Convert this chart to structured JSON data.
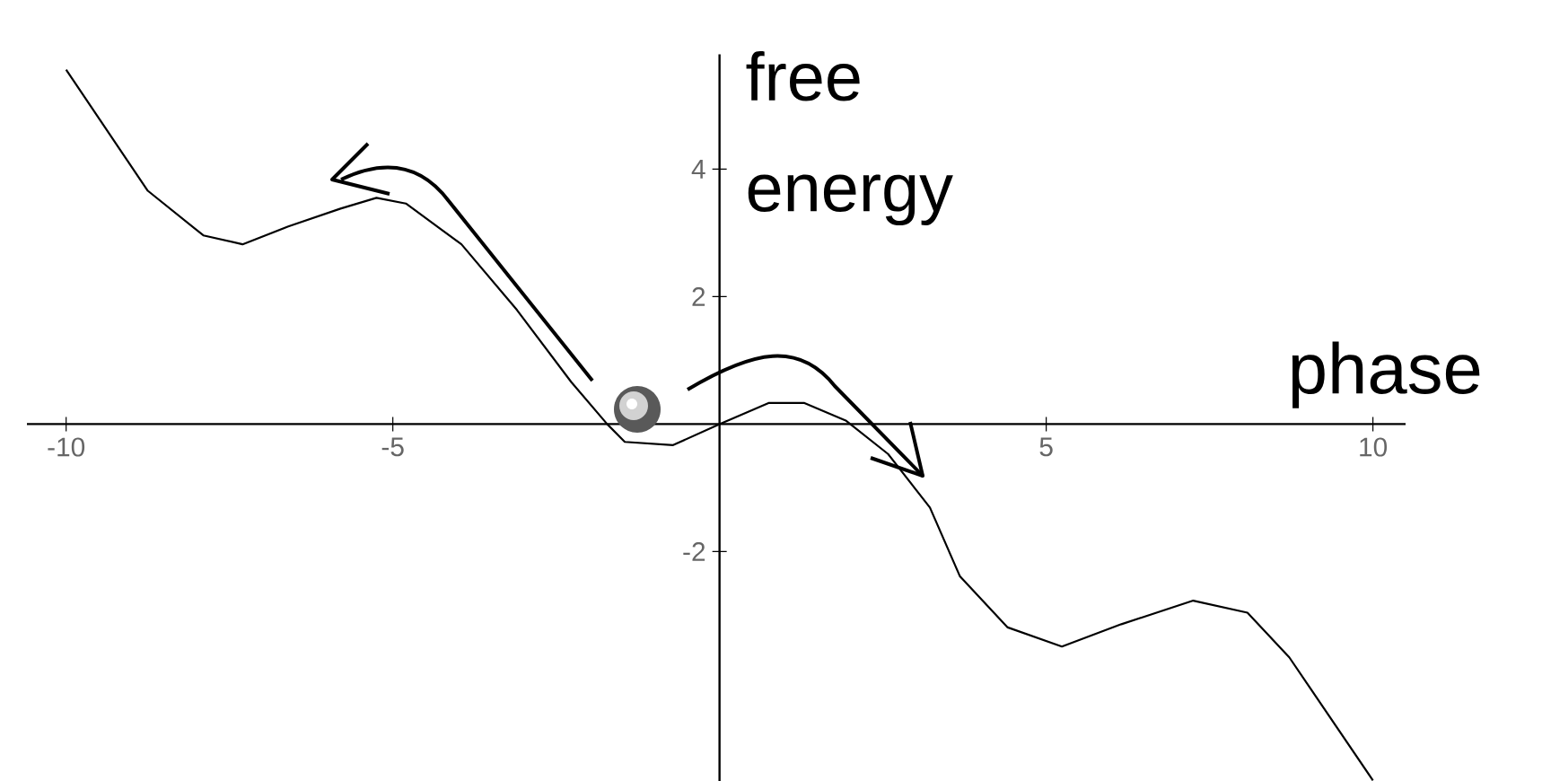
{
  "chart_data": {
    "type": "line",
    "xlabel": "phase",
    "ylabel": "free energy",
    "x": [
      -10,
      -8.75,
      -7.9,
      -7.3,
      -6.6,
      -5.8,
      -5.25,
      -4.8,
      -3.95,
      -3.1,
      -2.27,
      -1.72,
      -1.45,
      -0.71,
      0,
      0.75,
      1.3,
      1.94,
      2.58,
      3.22,
      3.68,
      4.41,
      5.24,
      6.15,
      7.25,
      8.08,
      8.72,
      10
    ],
    "values": [
      5.56,
      3.66,
      2.96,
      2.82,
      3.1,
      3.38,
      3.55,
      3.46,
      2.82,
      1.79,
      0.66,
      0,
      -0.28,
      -0.33,
      0,
      0.33,
      0.33,
      0.05,
      -0.47,
      -1.31,
      -2.39,
      -3.19,
      -3.49,
      -3.14,
      -2.77,
      -2.96,
      -3.66,
      -5.59
    ],
    "color": "#000000",
    "xlim": [
      -10.6,
      10.5
    ],
    "ylim": [
      -5.6,
      5.8
    ],
    "xticks": [
      -10,
      -5,
      5,
      10
    ],
    "yticks": [
      -2,
      2,
      4
    ]
  }
}
